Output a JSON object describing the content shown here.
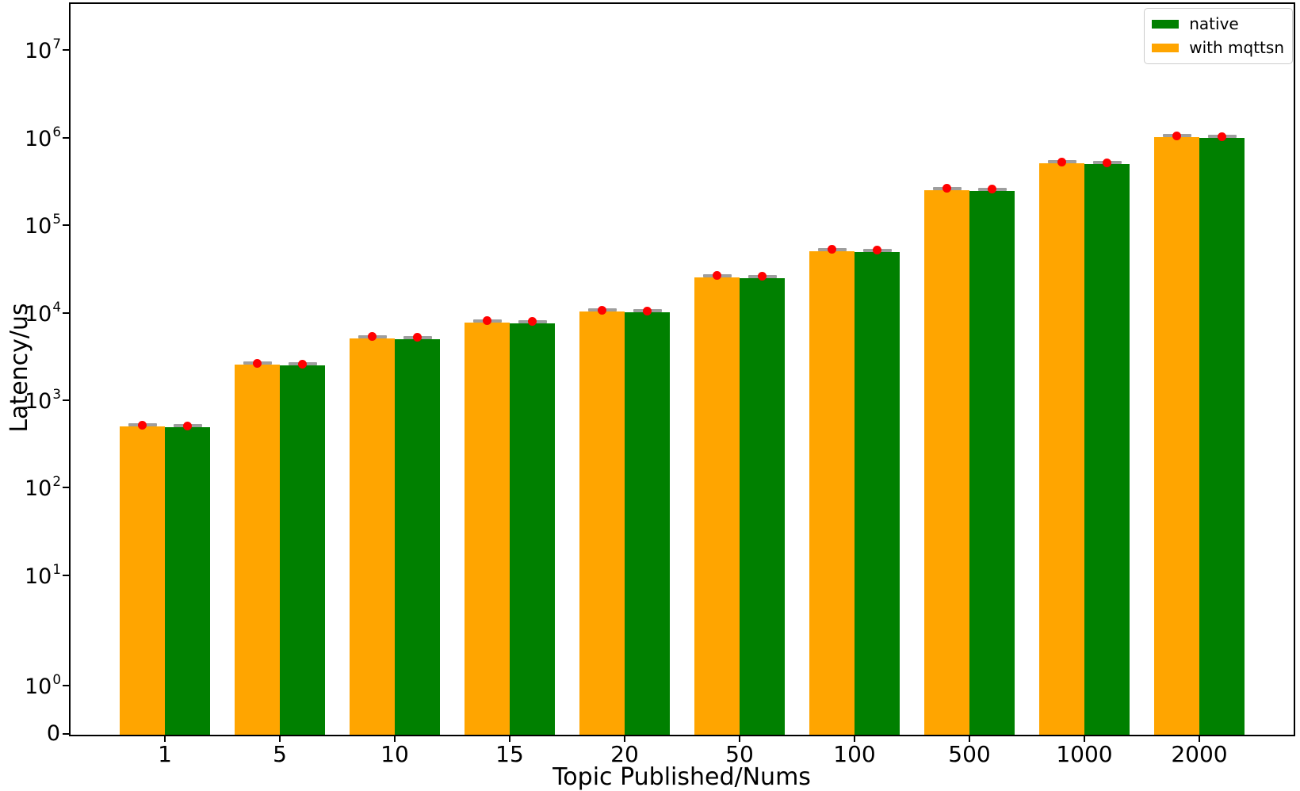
{
  "chart_data": {
    "type": "bar",
    "title": "",
    "xlabel": "Topic Published/Nums",
    "ylabel": "Latency/us",
    "yscale": "symlog",
    "grid": false,
    "legend_position": "upper right",
    "categories": [
      "1",
      "5",
      "10",
      "15",
      "20",
      "50",
      "100",
      "500",
      "1000",
      "2000"
    ],
    "series": [
      {
        "name": "with mqttsn",
        "color": "#FFA500",
        "values": [
          510,
          2600,
          5200,
          7900,
          10500,
          26000,
          52000,
          258000,
          520000,
          1035000
        ]
      },
      {
        "name": "native",
        "color": "#008000",
        "values": [
          500,
          2550,
          5100,
          7800,
          10300,
          25600,
          51000,
          254000,
          510000,
          1010000
        ]
      }
    ],
    "legend": [
      {
        "label": "native",
        "color": "#008000"
      },
      {
        "label": "with mqttsn",
        "color": "#FFA500"
      }
    ],
    "yticks": [
      {
        "label": "10^7",
        "value": 10000000
      },
      {
        "label": "10^6",
        "value": 1000000
      },
      {
        "label": "10^5",
        "value": 100000
      },
      {
        "label": "10^4",
        "value": 10000
      },
      {
        "label": "10^3",
        "value": 1000
      },
      {
        "label": "10^2",
        "value": 100
      },
      {
        "label": "10^1",
        "value": 10
      },
      {
        "label": "10^0",
        "value": 1
      },
      {
        "label": "0",
        "value": 0
      }
    ],
    "markers": {
      "mean_marker_color": "#FF0000",
      "error_cap_color": "#9e9e9e"
    }
  }
}
